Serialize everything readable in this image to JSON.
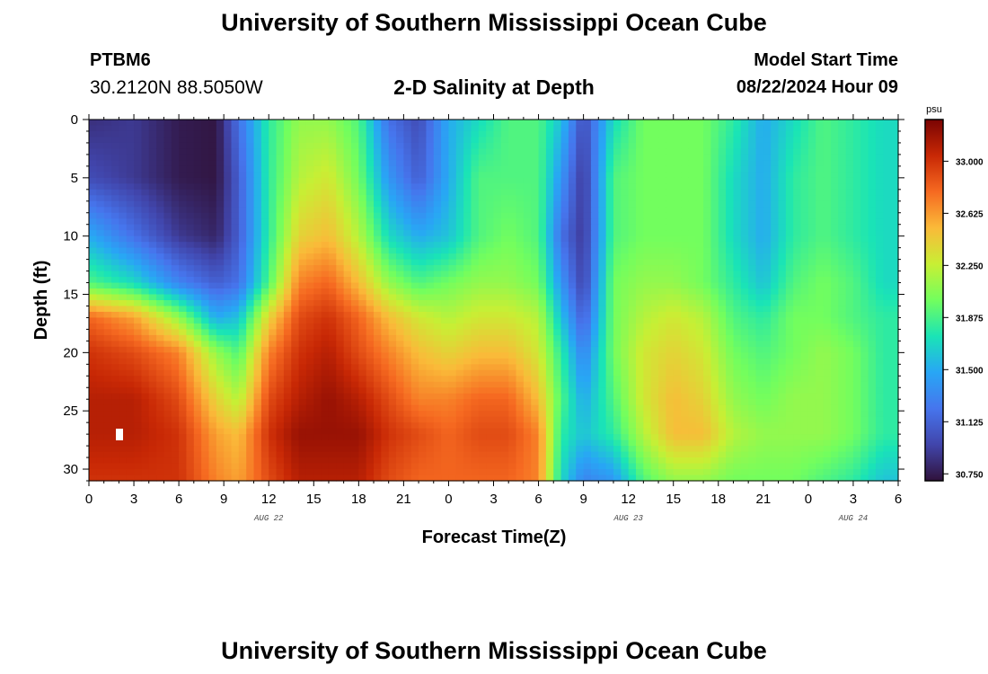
{
  "header": {
    "title": "University of Southern Mississippi Ocean Cube",
    "station": "PTBM6",
    "coords": "30.2120N  88.5050W",
    "subtitle": "2-D Salinity at Depth",
    "model_start_label": "Model Start Time",
    "model_start_value": "08/22/2024 Hour 09"
  },
  "footer": {
    "title": "University of Southern Mississippi Ocean Cube"
  },
  "chart_data": {
    "type": "heatmap",
    "title": "2-D Salinity at Depth",
    "xlabel": "Forecast Time(Z)",
    "ylabel": "Depth (ft)",
    "x_range_hours": [
      0,
      54
    ],
    "y_range_ft": [
      0,
      31
    ],
    "x_tick_labels": [
      "0",
      "3",
      "6",
      "9",
      "12",
      "15",
      "18",
      "21",
      "0",
      "3",
      "6",
      "9",
      "12",
      "15",
      "18",
      "21",
      "0",
      "3",
      "6"
    ],
    "x_ticks_hours": [
      0,
      3,
      6,
      9,
      12,
      15,
      18,
      21,
      24,
      27,
      30,
      33,
      36,
      39,
      42,
      45,
      48,
      51,
      54
    ],
    "y_ticks": [
      0,
      5,
      10,
      15,
      20,
      25,
      30
    ],
    "date_labels": [
      {
        "label": "AUG 22",
        "hour": 12
      },
      {
        "label": "AUG 23",
        "hour": 36
      },
      {
        "label": "AUG 24",
        "hour": 51
      }
    ],
    "colorbar": {
      "unit": "psu",
      "min": 30.7,
      "max": 33.3,
      "ticks": [
        "30.750",
        "31.125",
        "31.500",
        "31.875",
        "32.250",
        "32.625",
        "33.000"
      ],
      "tick_values": [
        30.75,
        31.125,
        31.5,
        31.875,
        32.25,
        32.625,
        33.0
      ]
    },
    "salinity_profile_psu": {
      "depth_ft": [
        0,
        5,
        10,
        14,
        17,
        20,
        24,
        27,
        31
      ],
      "hours": [
        0,
        3,
        6,
        8.5,
        10,
        12,
        14,
        16,
        18,
        20,
        22,
        24,
        26,
        28,
        30,
        31.5,
        33,
        35,
        37,
        39,
        41,
        43,
        45,
        47,
        49,
        51,
        53
      ],
      "values": [
        [
          30.85,
          30.9,
          30.75,
          30.72,
          31.2,
          31.8,
          32.1,
          32.1,
          31.9,
          31.2,
          31.0,
          31.5,
          31.7,
          31.9,
          31.9,
          31.6,
          31.0,
          31.7,
          32.0,
          32.0,
          32.0,
          31.8,
          31.5,
          31.7,
          31.9,
          31.8,
          31.7
        ],
        [
          31.0,
          30.9,
          30.75,
          30.72,
          31.1,
          31.8,
          32.2,
          32.3,
          32.0,
          31.4,
          31.1,
          31.5,
          31.9,
          31.9,
          31.9,
          31.4,
          30.9,
          31.9,
          32.0,
          32.0,
          32.0,
          31.7,
          31.5,
          31.8,
          31.9,
          31.8,
          31.7
        ],
        [
          31.5,
          31.2,
          30.9,
          30.8,
          31.1,
          31.8,
          32.4,
          32.5,
          32.2,
          31.7,
          31.5,
          31.6,
          31.9,
          32.0,
          31.9,
          31.2,
          30.9,
          31.9,
          32.0,
          32.0,
          32.0,
          31.7,
          31.5,
          31.8,
          31.9,
          31.8,
          31.7
        ],
        [
          31.9,
          31.7,
          31.3,
          31.1,
          31.2,
          31.9,
          32.7,
          32.8,
          32.5,
          32.1,
          31.9,
          32.0,
          32.1,
          32.1,
          32.0,
          31.4,
          30.95,
          32.0,
          32.1,
          32.1,
          32.0,
          31.8,
          31.6,
          31.9,
          32.0,
          31.9,
          31.7
        ],
        [
          32.8,
          32.6,
          32.1,
          31.5,
          31.6,
          32.4,
          32.9,
          33.0,
          32.8,
          32.5,
          32.3,
          32.2,
          32.3,
          32.3,
          32.2,
          31.6,
          31.1,
          32.0,
          32.2,
          32.3,
          32.2,
          31.9,
          31.8,
          32.0,
          32.0,
          31.9,
          31.8
        ],
        [
          33.0,
          32.9,
          32.7,
          32.1,
          31.9,
          32.7,
          33.0,
          33.1,
          32.9,
          32.7,
          32.5,
          32.4,
          32.5,
          32.5,
          32.3,
          31.8,
          31.3,
          32.0,
          32.3,
          32.4,
          32.3,
          32.0,
          31.9,
          32.0,
          32.1,
          32.0,
          31.8
        ],
        [
          33.1,
          33.1,
          32.9,
          32.4,
          32.2,
          32.9,
          33.1,
          33.2,
          33.1,
          32.9,
          32.7,
          32.7,
          32.8,
          32.8,
          32.5,
          31.9,
          31.5,
          31.9,
          32.3,
          32.5,
          32.4,
          32.1,
          32.0,
          32.1,
          32.1,
          32.0,
          31.8
        ],
        [
          33.1,
          33.1,
          33.0,
          32.6,
          32.5,
          33.0,
          33.2,
          33.2,
          33.2,
          33.0,
          32.9,
          32.8,
          32.9,
          32.9,
          32.7,
          31.8,
          31.6,
          31.8,
          32.2,
          32.5,
          32.5,
          32.2,
          32.1,
          32.1,
          32.1,
          32.0,
          31.8
        ],
        [
          33.0,
          33.0,
          33.0,
          32.7,
          32.6,
          32.9,
          33.1,
          33.1,
          33.1,
          32.9,
          32.8,
          32.8,
          32.8,
          32.8,
          32.7,
          31.7,
          31.3,
          31.4,
          31.9,
          32.1,
          32.1,
          32.0,
          32.0,
          32.0,
          31.9,
          31.8,
          31.6
        ]
      ]
    }
  }
}
